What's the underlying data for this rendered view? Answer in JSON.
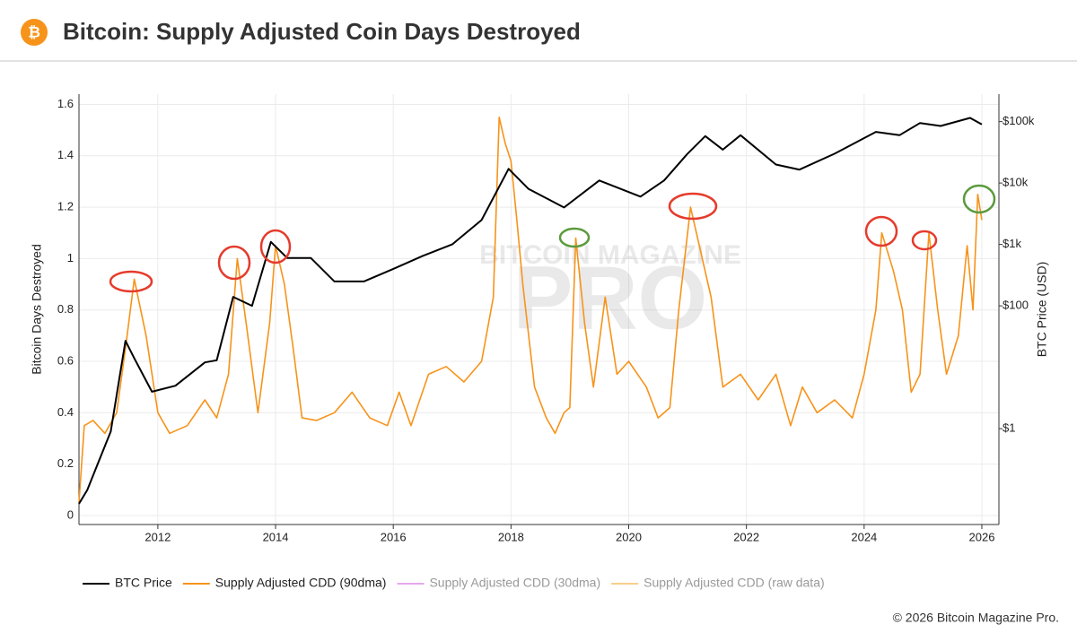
{
  "header": {
    "icon": "₿",
    "title": "Bitcoin: Supply Adjusted Coin Days Destroyed"
  },
  "footer": "© 2026 Bitcoin Magazine Pro.",
  "chart_data": {
    "type": "line",
    "watermark": [
      "BITCOIN MAGAZINE",
      "PRO"
    ],
    "y_label": "Bitcoin Days Destroyed",
    "y2_label": "BTC Price (USD)",
    "xlim": [
      2010.66,
      2026.29
    ],
    "xticks": [
      2012,
      2014,
      2016,
      2018,
      2020,
      2022,
      2024,
      2026
    ],
    "ylim": [
      -0.035,
      1.64
    ],
    "yticks": [
      0,
      0.2,
      0.4,
      0.6,
      0.8,
      1,
      1.2,
      1.4,
      1.6
    ],
    "y2lim": [
      0.0275,
      280000
    ],
    "y2log": true,
    "y2ticks": [
      {
        "value": 1,
        "label": "$1"
      },
      {
        "value": 100,
        "label": "$100"
      },
      {
        "value": 1000,
        "label": "$1k"
      },
      {
        "value": 10000,
        "label": "$10k"
      },
      {
        "value": 100000,
        "label": "$100k"
      }
    ],
    "grid": true,
    "series": [
      {
        "name": "BTC Price",
        "color": "#000000",
        "axis": "y2",
        "x": [
          2010.66,
          2010.8,
          2011.0,
          2011.2,
          2011.45,
          2011.6,
          2011.9,
          2012.3,
          2012.8,
          2013.0,
          2013.28,
          2013.6,
          2013.92,
          2014.2,
          2014.6,
          2015.0,
          2015.5,
          2016.0,
          2016.5,
          2017.0,
          2017.5,
          2017.96,
          2018.3,
          2018.9,
          2019.5,
          2020.2,
          2020.6,
          2021.0,
          2021.3,
          2021.6,
          2021.9,
          2022.5,
          2022.9,
          2023.5,
          2024.2,
          2024.6,
          2024.95,
          2025.3,
          2025.8,
          2026.0
        ],
        "values": [
          0.06,
          0.1,
          0.3,
          0.9,
          27,
          14,
          4,
          5,
          12,
          13,
          140,
          100,
          1100,
          600,
          600,
          250,
          250,
          400,
          650,
          1000,
          2500,
          17000,
          8000,
          4000,
          11000,
          6000,
          11000,
          30000,
          58000,
          35000,
          60000,
          20000,
          16500,
          30000,
          68000,
          60000,
          95000,
          85000,
          115000,
          90000
        ]
      },
      {
        "name": "Supply Adjusted CDD (90dma)",
        "color": "#f7931a",
        "axis": "y",
        "x": [
          2010.66,
          2010.75,
          2010.9,
          2011.1,
          2011.3,
          2011.45,
          2011.6,
          2011.8,
          2012.0,
          2012.2,
          2012.5,
          2012.8,
          2013.0,
          2013.2,
          2013.35,
          2013.5,
          2013.7,
          2013.9,
          2014.0,
          2014.15,
          2014.3,
          2014.45,
          2014.7,
          2015.0,
          2015.3,
          2015.6,
          2015.9,
          2016.1,
          2016.3,
          2016.6,
          2016.9,
          2017.2,
          2017.5,
          2017.7,
          2017.8,
          2017.9,
          2018.0,
          2018.1,
          2018.2,
          2018.4,
          2018.6,
          2018.75,
          2018.9,
          2019.0,
          2019.1,
          2019.25,
          2019.4,
          2019.6,
          2019.8,
          2020.0,
          2020.3,
          2020.5,
          2020.7,
          2020.85,
          2021.05,
          2021.2,
          2021.4,
          2021.6,
          2021.9,
          2022.2,
          2022.5,
          2022.75,
          2022.95,
          2023.2,
          2023.5,
          2023.8,
          2024.0,
          2024.2,
          2024.3,
          2024.5,
          2024.65,
          2024.8,
          2024.95,
          2025.1,
          2025.25,
          2025.4,
          2025.6,
          2025.75,
          2025.85,
          2025.93,
          2026.0
        ],
        "values": [
          0.05,
          0.35,
          0.37,
          0.32,
          0.4,
          0.65,
          0.92,
          0.7,
          0.4,
          0.32,
          0.35,
          0.45,
          0.38,
          0.55,
          1.0,
          0.75,
          0.4,
          0.75,
          1.05,
          0.9,
          0.65,
          0.38,
          0.37,
          0.4,
          0.48,
          0.38,
          0.35,
          0.48,
          0.35,
          0.55,
          0.58,
          0.52,
          0.6,
          0.85,
          1.55,
          1.45,
          1.38,
          1.15,
          0.9,
          0.5,
          0.38,
          0.32,
          0.4,
          0.42,
          1.08,
          0.75,
          0.5,
          0.85,
          0.55,
          0.6,
          0.5,
          0.38,
          0.42,
          0.8,
          1.2,
          1.05,
          0.85,
          0.5,
          0.55,
          0.45,
          0.55,
          0.35,
          0.5,
          0.4,
          0.45,
          0.38,
          0.55,
          0.8,
          1.1,
          0.95,
          0.8,
          0.48,
          0.55,
          1.1,
          0.8,
          0.55,
          0.7,
          1.05,
          0.8,
          1.25,
          1.15
        ]
      }
    ],
    "hidden_series": [
      {
        "name": "Supply Adjusted CDD (30dma)",
        "color": "#e7a6f0"
      },
      {
        "name": "Supply Adjusted CDD (raw data)",
        "color": "#f8cf8a"
      }
    ]
  }
}
